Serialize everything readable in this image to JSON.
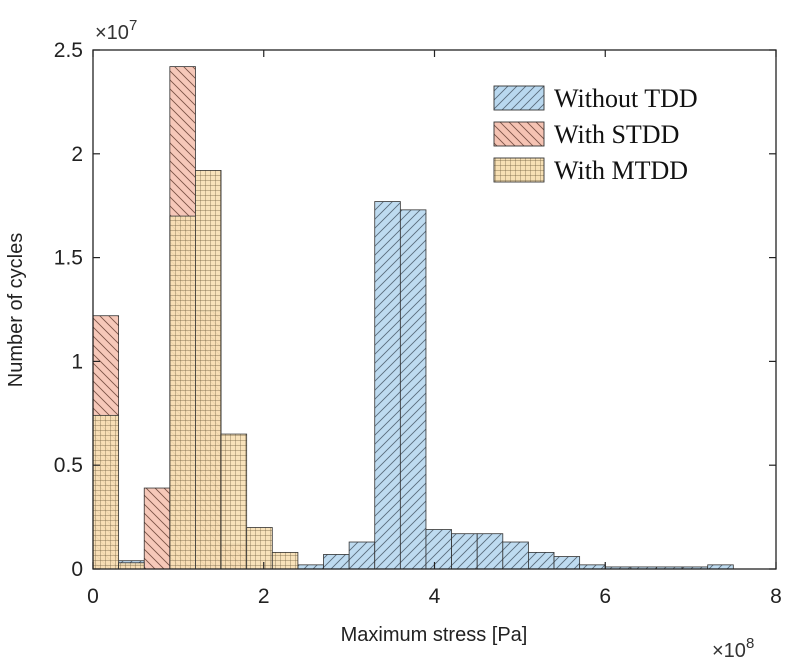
{
  "chart_data": {
    "type": "bar",
    "title": "",
    "xlabel": "Maximum stress [Pa]",
    "ylabel": "Number of cycles",
    "x_exponent_label": "×10",
    "x_exponent_power": "8",
    "y_exponent_label": "×10",
    "y_exponent_power": "7",
    "xlim": [
      0,
      8
    ],
    "ylim": [
      0,
      2.5
    ],
    "xticks": [
      0,
      2,
      4,
      6,
      8
    ],
    "xtick_labels": [
      "0",
      "2",
      "4",
      "6",
      "8"
    ],
    "yticks": [
      0,
      0.5,
      1,
      1.5,
      2,
      2.5
    ],
    "ytick_labels": [
      "0",
      "0.5",
      "1",
      "1.5",
      "2",
      "2.5"
    ],
    "legend_position": "top-right",
    "bin_width": 0.3,
    "series": [
      {
        "name": "Without TDD",
        "color": "#b9d8ef",
        "pattern": "forward-hatch",
        "bins": [
          [
            0.0,
            0.05
          ],
          [
            0.3,
            0.04
          ],
          [
            2.4,
            0.02
          ],
          [
            2.7,
            0.07
          ],
          [
            3.0,
            0.13
          ],
          [
            3.3,
            1.77
          ],
          [
            3.6,
            1.73
          ],
          [
            3.9,
            0.19
          ],
          [
            4.2,
            0.17
          ],
          [
            4.5,
            0.17
          ],
          [
            4.8,
            0.13
          ],
          [
            5.1,
            0.08
          ],
          [
            5.4,
            0.06
          ],
          [
            5.7,
            0.02
          ],
          [
            6.0,
            0.01
          ],
          [
            6.3,
            0.01
          ],
          [
            6.6,
            0.01
          ],
          [
            6.9,
            0.01
          ],
          [
            7.2,
            0.02
          ]
        ]
      },
      {
        "name": "With STDD",
        "color": "#f5c3b3",
        "pattern": "back-hatch",
        "bins": [
          [
            0.0,
            1.22
          ],
          [
            0.3,
            0.02
          ],
          [
            0.6,
            0.39
          ],
          [
            0.9,
            2.42
          ],
          [
            1.2,
            1.24
          ],
          [
            1.5,
            0.12
          ]
        ]
      },
      {
        "name": "With MTDD",
        "color": "#f7e0b4",
        "pattern": "grid",
        "bins": [
          [
            0.0,
            0.74
          ],
          [
            0.3,
            0.03
          ],
          [
            0.9,
            1.7
          ],
          [
            1.2,
            1.92
          ],
          [
            1.5,
            0.65
          ],
          [
            1.8,
            0.2
          ],
          [
            2.1,
            0.08
          ]
        ]
      }
    ]
  }
}
